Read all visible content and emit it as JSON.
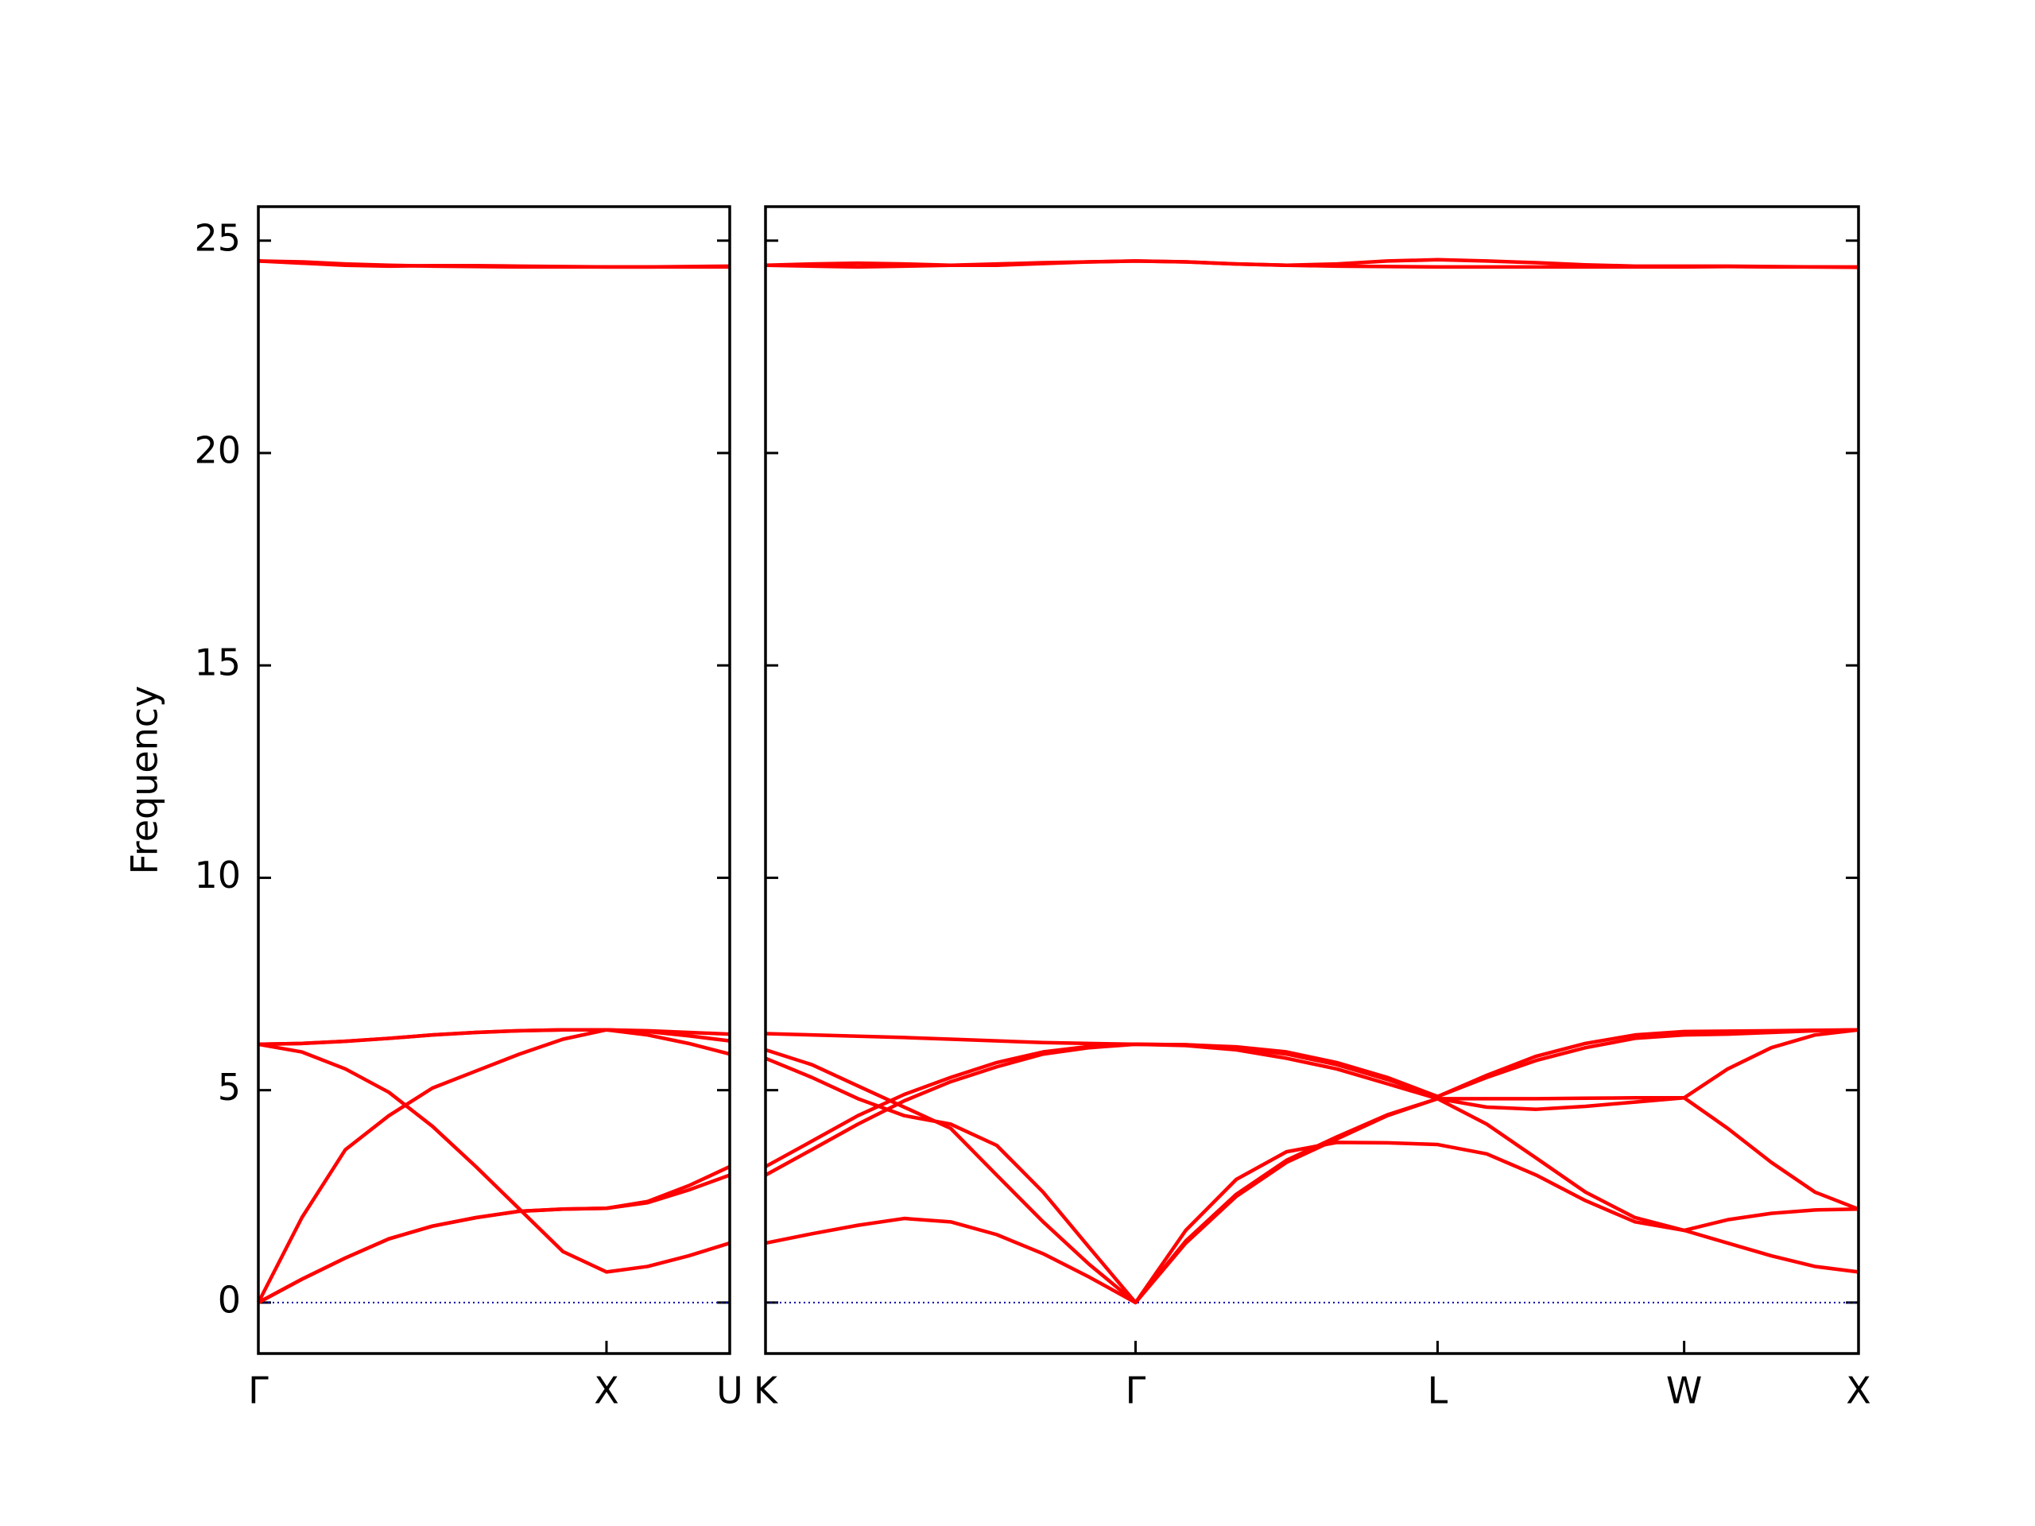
{
  "chart_data": [
    {
      "type": "line",
      "color": "#ff0000",
      "y_label": "Frequency",
      "hline": 0,
      "hline_color": "#0000aa",
      "xlim": [
        0,
        1.354
      ],
      "ylim": [
        -1.2,
        25.8
      ],
      "xticks": [
        {
          "value": 0,
          "label": "Γ"
        },
        {
          "value": 1,
          "label": "X"
        },
        {
          "value": 1.354,
          "label": "U"
        }
      ],
      "yticks": [
        0,
        5,
        10,
        15,
        20,
        25
      ],
      "x": [
        0,
        0.125,
        0.25,
        0.375,
        0.5,
        0.625,
        0.75,
        0.875,
        1,
        1.118,
        1.236,
        1.354
      ],
      "series": [
        {
          "values": [
            0,
            0.55,
            1.05,
            1.5,
            1.8,
            2.0,
            2.15,
            2.2,
            2.22,
            2.35,
            2.65,
            3.0
          ]
        },
        {
          "values": [
            0,
            0.55,
            1.05,
            1.5,
            1.8,
            2.0,
            2.15,
            2.2,
            2.22,
            2.38,
            2.75,
            3.2
          ]
        },
        {
          "values": [
            0,
            2.0,
            3.6,
            4.4,
            5.05,
            5.45,
            5.85,
            6.2,
            6.42,
            6.3,
            6.1,
            5.85
          ]
        },
        {
          "values": [
            6.08,
            6.1,
            6.15,
            6.22,
            6.3,
            6.36,
            6.4,
            6.42,
            6.42,
            6.4,
            6.36,
            6.32
          ]
        },
        {
          "values": [
            6.08,
            6.1,
            6.15,
            6.22,
            6.3,
            6.36,
            6.4,
            6.42,
            6.42,
            6.38,
            6.28,
            6.16
          ]
        },
        {
          "values": [
            6.08,
            5.9,
            5.5,
            4.95,
            4.15,
            3.2,
            2.2,
            1.2,
            0.72,
            0.85,
            1.1,
            1.4
          ]
        },
        {
          "values": [
            24.52,
            24.5,
            24.45,
            24.42,
            24.4,
            24.39,
            24.38,
            24.38,
            24.38,
            24.38,
            24.39,
            24.4
          ]
        },
        {
          "values": [
            24.52,
            24.47,
            24.42,
            24.4,
            24.41,
            24.41,
            24.4,
            24.39,
            24.38,
            24.38,
            24.38,
            24.38
          ]
        }
      ]
    },
    {
      "type": "line",
      "color": "#ff0000",
      "hline": 0,
      "hline_color": "#0000aa",
      "xlim": [
        1.354,
        4.488
      ],
      "ylim": [
        -1.2,
        25.8
      ],
      "xticks": [
        {
          "value": 1.354,
          "label": "K"
        },
        {
          "value": 2.415,
          "label": "Γ"
        },
        {
          "value": 3.281,
          "label": "L"
        },
        {
          "value": 3.988,
          "label": "W"
        },
        {
          "value": 4.488,
          "label": "X"
        }
      ],
      "yticks": [
        0,
        5,
        10,
        15,
        20,
        25
      ],
      "x": [
        1.354,
        1.487,
        1.619,
        1.752,
        1.885,
        2.017,
        2.15,
        2.282,
        2.415,
        2.559,
        2.704,
        2.848,
        2.992,
        3.137,
        3.281,
        3.422,
        3.564,
        3.705,
        3.847,
        3.988,
        4.113,
        4.238,
        4.363,
        4.488
      ],
      "series": [
        {
          "values": [
            1.4,
            1.62,
            1.82,
            1.98,
            1.9,
            1.6,
            1.15,
            0.6,
            0,
            1.7,
            2.9,
            3.55,
            3.77,
            3.76,
            3.72,
            3.5,
            3.0,
            2.4,
            1.9,
            1.7,
            1.4,
            1.1,
            0.85,
            0.72
          ]
        },
        {
          "values": [
            5.95,
            5.6,
            5.1,
            4.6,
            4.1,
            3.0,
            1.9,
            0.9,
            0,
            1.4,
            2.5,
            3.3,
            3.85,
            4.4,
            4.8,
            4.2,
            3.4,
            2.6,
            2.0,
            1.7,
            1.95,
            2.1,
            2.18,
            2.2
          ]
        },
        {
          "values": [
            5.75,
            5.3,
            4.8,
            4.4,
            4.2,
            3.7,
            2.6,
            1.3,
            0,
            1.45,
            2.55,
            3.35,
            3.9,
            4.42,
            4.8,
            4.6,
            4.55,
            4.62,
            4.72,
            4.82,
            4.1,
            3.3,
            2.6,
            2.2
          ]
        },
        {
          "values": [
            3.2,
            3.8,
            4.4,
            4.9,
            5.3,
            5.65,
            5.9,
            6.03,
            6.08,
            6.05,
            5.95,
            5.75,
            5.5,
            5.15,
            4.8,
            4.8,
            4.8,
            4.81,
            4.82,
            4.82,
            5.5,
            6.0,
            6.3,
            6.42
          ]
        },
        {
          "values": [
            3.0,
            3.6,
            4.2,
            4.75,
            5.2,
            5.55,
            5.85,
            6.0,
            6.08,
            6.07,
            6.0,
            5.85,
            5.6,
            5.25,
            4.85,
            5.3,
            5.7,
            6.0,
            6.22,
            6.3,
            6.32,
            6.36,
            6.4,
            6.42
          ]
        },
        {
          "values": [
            6.33,
            6.3,
            6.27,
            6.24,
            6.2,
            6.16,
            6.12,
            6.1,
            6.08,
            6.07,
            6.02,
            5.9,
            5.65,
            5.3,
            4.85,
            5.35,
            5.8,
            6.1,
            6.3,
            6.38,
            6.39,
            6.4,
            6.41,
            6.42
          ]
        },
        {
          "values": [
            24.42,
            24.45,
            24.47,
            24.45,
            24.42,
            24.42,
            24.46,
            24.5,
            24.52,
            24.5,
            24.45,
            24.42,
            24.45,
            24.52,
            24.55,
            24.52,
            24.48,
            24.43,
            24.4,
            24.4,
            24.4,
            24.39,
            24.38,
            24.38
          ]
        },
        {
          "values": [
            24.42,
            24.4,
            24.38,
            24.4,
            24.42,
            24.45,
            24.48,
            24.5,
            24.52,
            24.5,
            24.45,
            24.42,
            24.4,
            24.39,
            24.38,
            24.38,
            24.38,
            24.38,
            24.38,
            24.38,
            24.39,
            24.38,
            24.38,
            24.37
          ]
        }
      ]
    }
  ]
}
